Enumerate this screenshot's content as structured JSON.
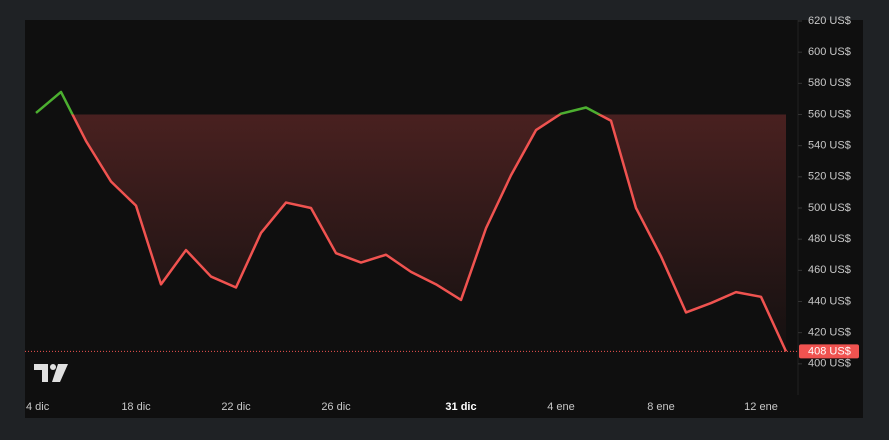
{
  "chart_data": {
    "type": "line",
    "categories": [
      "4 dic",
      null,
      null,
      null,
      "18 dic",
      null,
      null,
      null,
      "22 dic",
      null,
      null,
      null,
      "26 dic",
      null,
      null,
      null,
      null,
      "31 dic",
      null,
      null,
      null,
      "4 ene",
      null,
      null,
      null,
      "8 ene",
      null,
      null,
      null,
      "12 ene",
      null
    ],
    "series": [
      {
        "color": "#f05350",
        "up_color": "#4caf30",
        "values": [
          561,
          574.5,
          543,
          517,
          501.5,
          451,
          473,
          456,
          449,
          484,
          503.5,
          500,
          471,
          465,
          470,
          459,
          451,
          441,
          487,
          521,
          550,
          560.5,
          564.5,
          556,
          500,
          469,
          433,
          439,
          446,
          443,
          408
        ]
      }
    ],
    "baseline": 560,
    "current_price": {
      "value": 408,
      "label": "408 US$"
    },
    "ylim": [
      380,
      620
    ],
    "yticks": [
      {
        "value": 400,
        "label": "400 US$"
      },
      {
        "value": 420,
        "label": "420 US$"
      },
      {
        "value": 440,
        "label": "440 US$"
      },
      {
        "value": 460,
        "label": "460 US$"
      },
      {
        "value": 480,
        "label": "480 US$"
      },
      {
        "value": 500,
        "label": "500 US$"
      },
      {
        "value": 520,
        "label": "520 US$"
      },
      {
        "value": 540,
        "label": "540 US$"
      },
      {
        "value": 560,
        "label": "560 US$"
      },
      {
        "value": 580,
        "label": "580 US$"
      },
      {
        "value": 600,
        "label": "600 US$"
      },
      {
        "value": 620,
        "label": "620 US$"
      }
    ],
    "grid": false
  }
}
